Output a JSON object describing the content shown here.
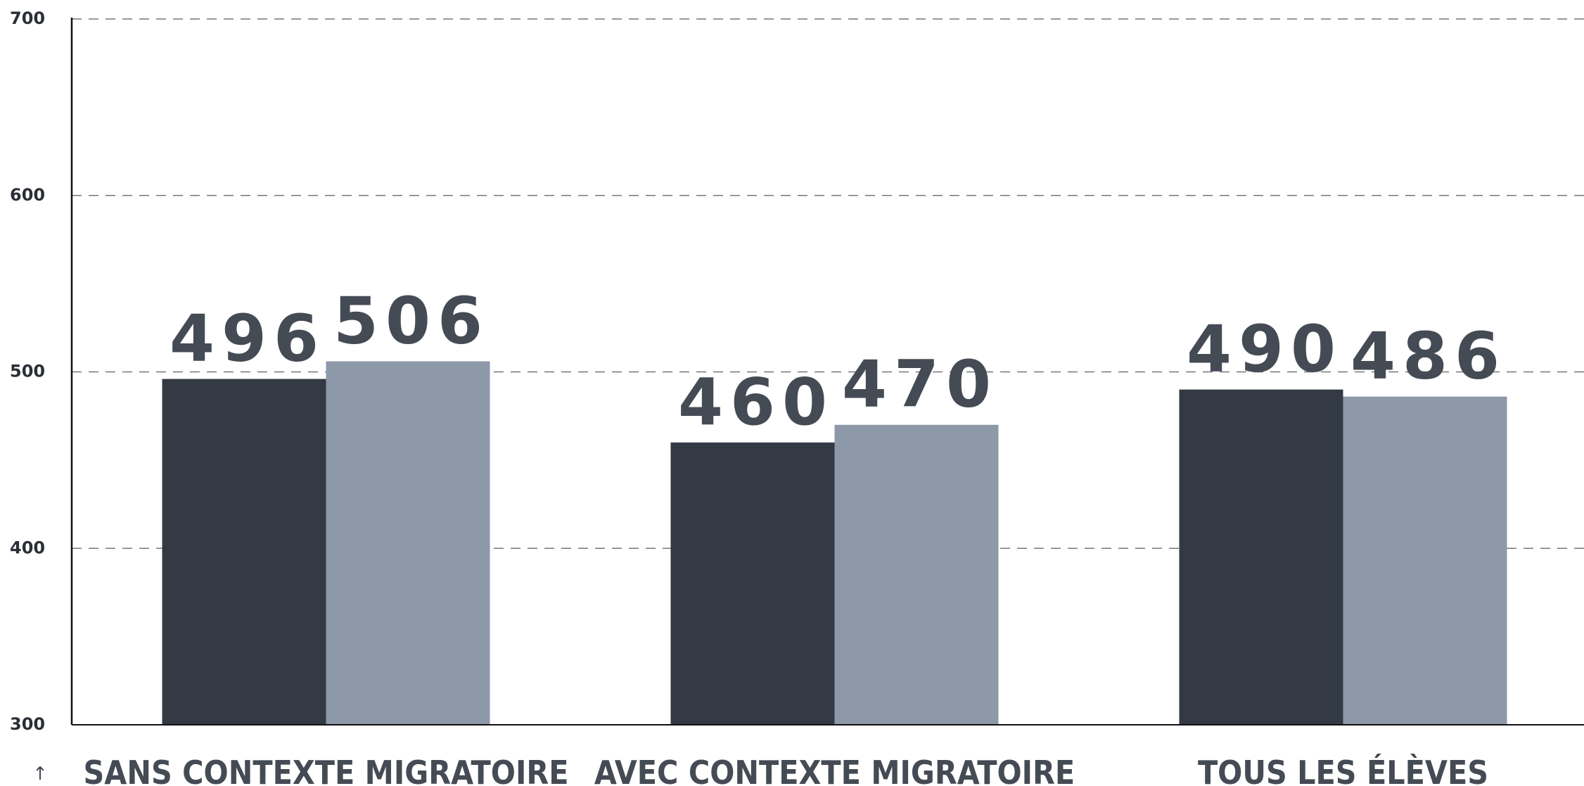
{
  "chart_data": {
    "type": "bar",
    "categories": [
      "SANS CONTEXTE MIGRATOIRE",
      "AVEC CONTEXTE MIGRATOIRE",
      "TOUS LES ÉLÈVES"
    ],
    "series": [
      {
        "color": "#343a43",
        "values": [
          496,
          460,
          490
        ]
      },
      {
        "color": "#8d99a8",
        "values": [
          506,
          470,
          486
        ]
      }
    ],
    "ylim": [
      300,
      700
    ],
    "yticks": [
      300,
      400,
      500,
      600,
      700
    ],
    "grid": true
  }
}
